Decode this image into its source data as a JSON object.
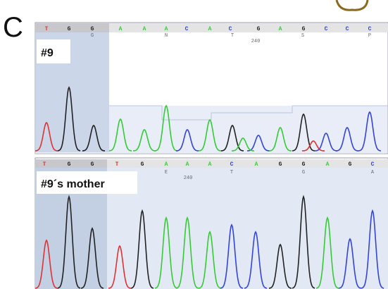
{
  "panel_label": "C",
  "base_colors": {
    "A": "#33cc33",
    "C": "#3344dd",
    "G": "#222222",
    "T": "#dd3333"
  },
  "tracks": [
    {
      "label": "#9",
      "bases": [
        "T",
        "G",
        "G",
        "A",
        "A",
        "A",
        "C",
        "A",
        "C",
        "G",
        "A",
        "G",
        "C",
        "C",
        "C"
      ],
      "annotations": [
        "G",
        "N",
        "T",
        "240",
        "S",
        "P"
      ]
    },
    {
      "label": "#9´s mother",
      "bases": [
        "T",
        "G",
        "G",
        "T",
        "G",
        "A",
        "A",
        "A",
        "C",
        "A",
        "G",
        "G",
        "A",
        "G",
        "C"
      ],
      "annotations": [
        "E",
        "240",
        "T",
        "G",
        "A"
      ]
    }
  ]
}
